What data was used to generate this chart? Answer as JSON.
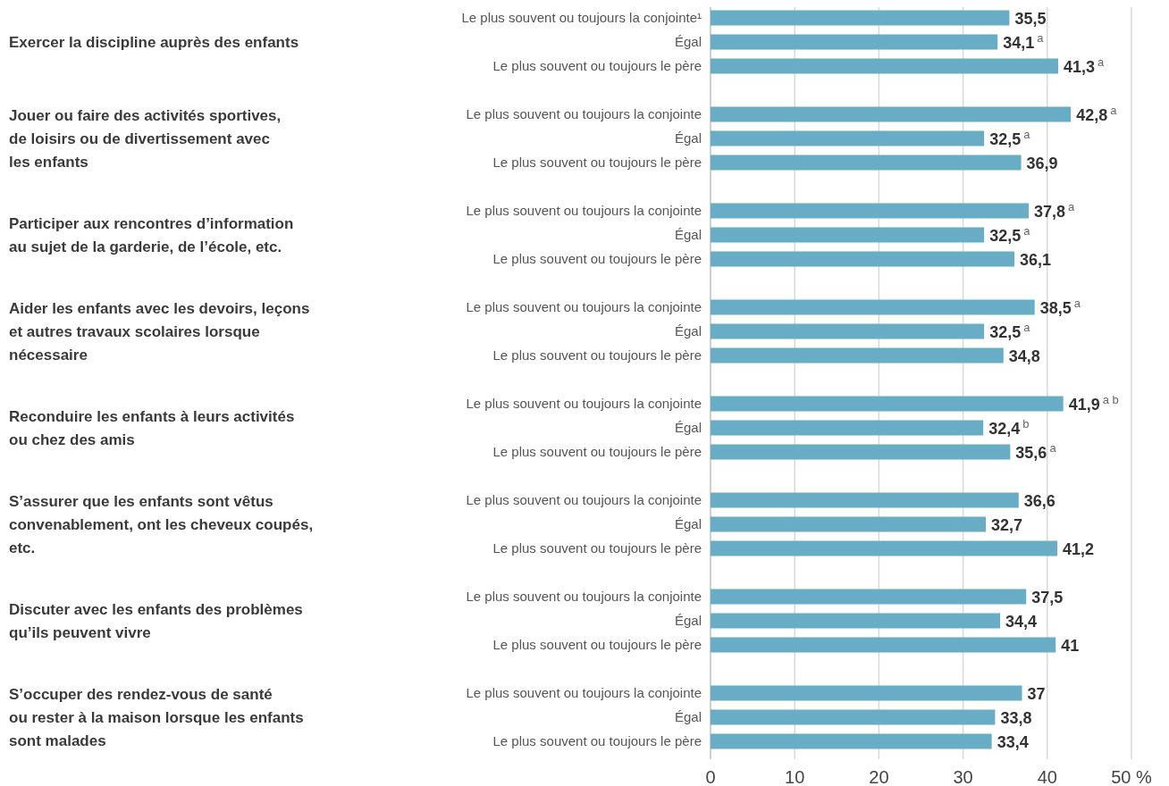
{
  "chart_data": {
    "type": "bar",
    "orientation": "horizontal",
    "categories": [
      "Le plus souvent ou toujours la conjointe¹",
      "Égal",
      "Le plus souvent ou toujours le père",
      "Le plus souvent ou toujours la conjointe",
      "Égal",
      "Le plus souvent ou toujours le père",
      "Le plus souvent ou toujours la conjointe",
      "Égal",
      "Le plus souvent ou toujours le père",
      "Le plus souvent ou toujours la conjointe",
      "Égal",
      "Le plus souvent ou toujours le père",
      "Le plus souvent ou toujours la conjointe",
      "Égal",
      "Le plus souvent ou toujours le père",
      "Le plus souvent ou toujours la conjointe",
      "Égal",
      "Le plus souvent ou toujours le père",
      "Le plus souvent ou toujours la conjointe",
      "Égal",
      "Le plus souvent ou toujours le père",
      "Le plus souvent ou toujours la conjointe",
      "Égal",
      "Le plus souvent ou toujours le père"
    ],
    "values": [
      35.5,
      34.1,
      41.3,
      42.8,
      32.5,
      36.9,
      37.8,
      32.5,
      36.1,
      38.5,
      32.5,
      34.8,
      41.9,
      32.4,
      35.6,
      36.6,
      32.7,
      41.2,
      37.5,
      34.4,
      41,
      37,
      33.8,
      33.4
    ],
    "value_labels": [
      "35,5",
      "34,1$^{a}$",
      "41,3$^{a}$",
      "42,8$^{a}$",
      "32,5$^{a}$",
      "36,9",
      "37,8$^{a}$",
      "32,5$^{a}$",
      "36,1",
      "38,5$^{a}$",
      "32,5$^{a}$",
      "34,8",
      "41,9$^{a b}$",
      "32,4$^{b}$",
      "35,6$^{a}$",
      "36,6",
      "32,7",
      "41,2",
      "37,5",
      "34,4",
      "41",
      "37",
      "33,8",
      "33,4"
    ],
    "color": "#68acc6",
    "xlim": [
      0,
      50
    ],
    "xticks": [
      0,
      10,
      20,
      30,
      40,
      {
        "value": 50,
        "label": "50 %"
      }
    ],
    "grid": "x",
    "annotations": [
      "Exercer la discipline auprès des enfants",
      "Jouer ou faire des activités sportives,\nde loisirs ou de divertissement avec\nles enfants",
      "Participer aux rencontres d’information\nau sujet de la garderie, de l’école, etc.",
      "Aider les enfants avec les devoirs, leçons\net autres travaux scolaires lorsque\nnécessaire",
      "Reconduire les enfants à leurs activités\nou chez des amis",
      "S’assurer que les enfants sont vêtus\nconvenablement, ont les cheveux coupés,\netc.",
      "Discuter avec les enfants des problèmes\nqu’ils peuvent vivre",
      "S’occuper des rendez-vous de santé\nou rester à la maison lorsque les enfants\nsont malades"
    ]
  }
}
